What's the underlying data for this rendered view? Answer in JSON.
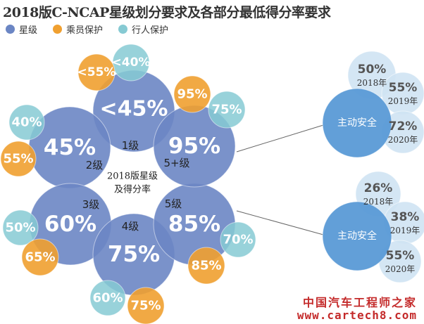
{
  "title": "2018版C-NCAP星级划分要求及各部分最低得分率要求",
  "legend": [
    {
      "label": "星级",
      "color": "#6b86c4"
    },
    {
      "label": "乘员保护",
      "color": "#f0a030"
    },
    {
      "label": "行人保护",
      "color": "#86cad3"
    }
  ],
  "center_label": [
    "2018版星级",
    "及得分率"
  ],
  "chart_data": {
    "type": "bubble",
    "stars": [
      {
        "level": "1级",
        "star": "<45%",
        "occupant": "<55%",
        "pedestrian": "<40%"
      },
      {
        "level": "2级",
        "star": "45%",
        "occupant": "55%",
        "pedestrian": "40%"
      },
      {
        "level": "3级",
        "star": "60%",
        "occupant": "65%",
        "pedestrian": "50%"
      },
      {
        "level": "4级",
        "star": "75%",
        "occupant": "75%",
        "pedestrian": "60%"
      },
      {
        "level": "5级",
        "star": "85%",
        "occupant": "85%",
        "pedestrian": "70%"
      },
      {
        "level": "5+级",
        "star": "95%",
        "occupant": "95%",
        "pedestrian": "75%"
      }
    ],
    "active_safety": [
      {
        "label": "主动安全",
        "level": "5+级",
        "years": [
          {
            "year": "2018年",
            "value": "50%"
          },
          {
            "year": "2019年",
            "value": "55%"
          },
          {
            "year": "2020年",
            "value": "72%"
          }
        ]
      },
      {
        "label": "主动安全",
        "level": "5级",
        "years": [
          {
            "year": "2018年",
            "value": "26%"
          },
          {
            "year": "2019年",
            "value": "38%"
          },
          {
            "year": "2020年",
            "value": "55%"
          }
        ]
      }
    ]
  },
  "watermark": {
    "line1": "中国汽车工程师之家",
    "line2": "www.cartech8.com"
  }
}
